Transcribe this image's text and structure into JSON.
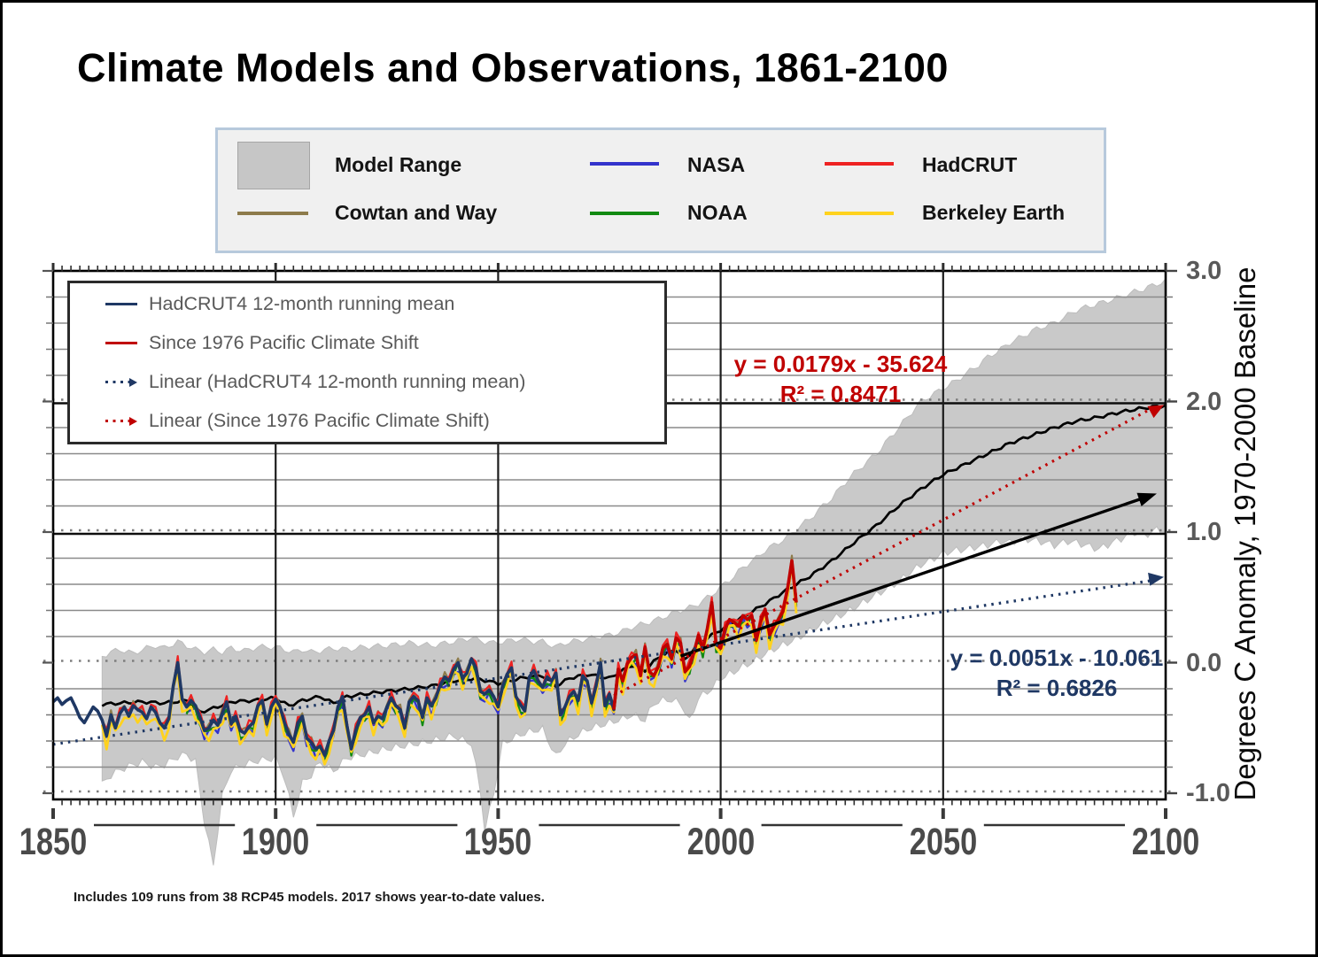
{
  "page": {
    "title": "Climate Models and Observations, 1861-2100",
    "footnote": "Includes 109 runs from 38 RCP45 models. 2017 shows year-to-date values."
  },
  "legend": {
    "items": [
      {
        "label": "Model Range",
        "color": "#c6c6c6",
        "type": "box"
      },
      {
        "label": "NASA",
        "color": "#3333cc",
        "type": "line"
      },
      {
        "label": "HadCRUT",
        "color": "#ee2222",
        "type": "line"
      },
      {
        "label": "Cowtan and Way",
        "color": "#8d7b4b",
        "type": "line"
      },
      {
        "label": "NOAA",
        "color": "#128a12",
        "type": "line"
      },
      {
        "label": "Berkeley Earth",
        "color": "#ffd21e",
        "type": "line"
      }
    ]
  },
  "inner_legend": {
    "items": [
      {
        "label": "HadCRUT4 12-month running mean",
        "color": "#1f3864",
        "style": "solid"
      },
      {
        "label": "Since 1976 Pacific Climate Shift",
        "color": "#c00000",
        "style": "solid"
      },
      {
        "label": "Linear (HadCRUT4 12-month running mean)",
        "color": "#1f3864",
        "style": "dotted-arrow"
      },
      {
        "label": "Linear (Since 1976 Pacific Climate Shift)",
        "color": "#c00000",
        "style": "dotted-arrow"
      }
    ]
  },
  "annotations": {
    "red": {
      "line1": "y = 0.0179x - 35.624",
      "line2": "R² = 0.8471",
      "color": "#c00000"
    },
    "navy": {
      "line1": "y = 0.0051x - 10.061",
      "line2": "R² = 0.6826",
      "color": "#1f3864"
    }
  },
  "x_axis": {
    "ticks": [
      "1850",
      "1900",
      "1950",
      "2000",
      "2050",
      "2100"
    ]
  },
  "y_axis": {
    "ticks": [
      "3.0",
      "2.0",
      "1.0",
      "0.0",
      "-1.0"
    ],
    "title": "Degrees C Anomaly, 1970-2000 Baseline"
  },
  "chart_data": {
    "type": "line",
    "title": "Climate Models and Observations, 1861-2100",
    "xlabel": "",
    "ylabel": "Degrees C Anomaly, 1970-2000 Baseline",
    "x_range": [
      1850,
      2100
    ],
    "y_range": [
      -1.05,
      3.0
    ],
    "grid_step": 0.2,
    "reference_lines": [
      1.0,
      2.0
    ],
    "band": {
      "name": "Model Range",
      "color": "#c9c9c9",
      "points": [
        [
          1861,
          -0.93,
          0.05
        ],
        [
          1863,
          -0.86,
          0.08
        ],
        [
          1865,
          -0.82,
          0.1
        ],
        [
          1868,
          -0.78,
          0.07
        ],
        [
          1870,
          -0.76,
          0.1
        ],
        [
          1873,
          -0.8,
          0.13
        ],
        [
          1875,
          -0.78,
          0.11
        ],
        [
          1878,
          -0.72,
          0.16
        ],
        [
          1880,
          -0.7,
          0.13
        ],
        [
          1882,
          -0.76,
          0.1
        ],
        [
          1884,
          -1.22,
          0.08
        ],
        [
          1886,
          -1.55,
          0.1
        ],
        [
          1888,
          -1.02,
          0.08
        ],
        [
          1890,
          -0.82,
          0.11
        ],
        [
          1893,
          -0.78,
          0.09
        ],
        [
          1896,
          -0.75,
          0.12
        ],
        [
          1900,
          -0.73,
          0.12
        ],
        [
          1902,
          -0.88,
          0.1
        ],
        [
          1904,
          -1.18,
          0.08
        ],
        [
          1906,
          -0.92,
          0.1
        ],
        [
          1908,
          -0.86,
          0.08
        ],
        [
          1910,
          -0.76,
          0.09
        ],
        [
          1913,
          -0.83,
          0.11
        ],
        [
          1916,
          -0.73,
          0.1
        ],
        [
          1920,
          -0.7,
          0.12
        ],
        [
          1925,
          -0.66,
          0.13
        ],
        [
          1930,
          -0.63,
          0.15
        ],
        [
          1935,
          -0.6,
          0.13
        ],
        [
          1940,
          -0.56,
          0.16
        ],
        [
          1944,
          -0.62,
          0.19
        ],
        [
          1946,
          -0.98,
          0.17
        ],
        [
          1947,
          -1.28,
          0.16
        ],
        [
          1949,
          -1.0,
          0.15
        ],
        [
          1951,
          -0.62,
          0.16
        ],
        [
          1955,
          -0.55,
          0.18
        ],
        [
          1958,
          -0.52,
          0.16
        ],
        [
          1960,
          -0.51,
          0.16
        ],
        [
          1963,
          -0.72,
          0.12
        ],
        [
          1965,
          -0.62,
          0.15
        ],
        [
          1968,
          -0.55,
          0.17
        ],
        [
          1970,
          -0.51,
          0.18
        ],
        [
          1973,
          -0.48,
          0.2
        ],
        [
          1975,
          -0.46,
          0.21
        ],
        [
          1978,
          -0.43,
          0.24
        ],
        [
          1980,
          -0.4,
          0.27
        ],
        [
          1983,
          -0.44,
          0.3
        ],
        [
          1985,
          -0.31,
          0.32
        ],
        [
          1988,
          -0.28,
          0.36
        ],
        [
          1991,
          -0.31,
          0.4
        ],
        [
          1993,
          -0.45,
          0.42
        ],
        [
          1995,
          -0.27,
          0.45
        ],
        [
          1998,
          -0.2,
          0.52
        ],
        [
          2000,
          -0.12,
          0.58
        ],
        [
          2003,
          -0.07,
          0.66
        ],
        [
          2005,
          -0.03,
          0.73
        ],
        [
          2008,
          0.02,
          0.8
        ],
        [
          2010,
          0.07,
          0.86
        ],
        [
          2013,
          0.12,
          0.92
        ],
        [
          2015,
          0.15,
          0.96
        ],
        [
          2018,
          0.2,
          1.05
        ],
        [
          2020,
          0.24,
          1.1
        ],
        [
          2023,
          0.3,
          1.2
        ],
        [
          2025,
          0.33,
          1.26
        ],
        [
          2028,
          0.38,
          1.38
        ],
        [
          2030,
          0.42,
          1.45
        ],
        [
          2033,
          0.48,
          1.54
        ],
        [
          2035,
          0.52,
          1.6
        ],
        [
          2038,
          0.58,
          1.72
        ],
        [
          2040,
          0.62,
          1.8
        ],
        [
          2043,
          0.7,
          1.92
        ],
        [
          2045,
          0.75,
          2.0
        ],
        [
          2048,
          0.8,
          2.06
        ],
        [
          2050,
          0.84,
          2.1
        ],
        [
          2053,
          0.86,
          2.16
        ],
        [
          2055,
          0.87,
          2.21
        ],
        [
          2058,
          0.89,
          2.28
        ],
        [
          2060,
          0.9,
          2.34
        ],
        [
          2063,
          0.93,
          2.4
        ],
        [
          2065,
          0.92,
          2.45
        ],
        [
          2068,
          0.95,
          2.5
        ],
        [
          2070,
          0.94,
          2.54
        ],
        [
          2073,
          0.92,
          2.58
        ],
        [
          2075,
          0.9,
          2.6
        ],
        [
          2078,
          0.93,
          2.66
        ],
        [
          2080,
          0.92,
          2.7
        ],
        [
          2083,
          0.89,
          2.73
        ],
        [
          2085,
          0.87,
          2.75
        ],
        [
          2088,
          0.92,
          2.78
        ],
        [
          2090,
          0.95,
          2.8
        ],
        [
          2093,
          1.0,
          2.84
        ],
        [
          2095,
          0.97,
          2.86
        ],
        [
          2098,
          1.02,
          2.9
        ],
        [
          2100,
          1.0,
          2.92
        ]
      ]
    },
    "model_mean": {
      "name": "Model mean",
      "color": "#000000",
      "points": [
        [
          1861,
          -0.32
        ],
        [
          1865,
          -0.31
        ],
        [
          1870,
          -0.3
        ],
        [
          1875,
          -0.31
        ],
        [
          1880,
          -0.29
        ],
        [
          1883,
          -0.38
        ],
        [
          1886,
          -0.35
        ],
        [
          1890,
          -0.3
        ],
        [
          1895,
          -0.29
        ],
        [
          1900,
          -0.27
        ],
        [
          1903,
          -0.33
        ],
        [
          1906,
          -0.29
        ],
        [
          1910,
          -0.26
        ],
        [
          1913,
          -0.31
        ],
        [
          1916,
          -0.26
        ],
        [
          1920,
          -0.24
        ],
        [
          1925,
          -0.22
        ],
        [
          1930,
          -0.2
        ],
        [
          1935,
          -0.18
        ],
        [
          1940,
          -0.14
        ],
        [
          1945,
          -0.12
        ],
        [
          1950,
          -0.16
        ],
        [
          1955,
          -0.12
        ],
        [
          1960,
          -0.1
        ],
        [
          1963,
          -0.18
        ],
        [
          1966,
          -0.12
        ],
        [
          1970,
          -0.09
        ],
        [
          1975,
          -0.12
        ],
        [
          1980,
          -0.02
        ],
        [
          1983,
          -0.06
        ],
        [
          1986,
          0.04
        ],
        [
          1990,
          0.1
        ],
        [
          1992,
          0.02
        ],
        [
          1995,
          0.15
        ],
        [
          2000,
          0.25
        ],
        [
          2005,
          0.35
        ],
        [
          2010,
          0.45
        ],
        [
          2015,
          0.56
        ],
        [
          2020,
          0.66
        ],
        [
          2025,
          0.78
        ],
        [
          2030,
          0.92
        ],
        [
          2035,
          1.05
        ],
        [
          2040,
          1.2
        ],
        [
          2045,
          1.33
        ],
        [
          2050,
          1.44
        ],
        [
          2055,
          1.52
        ],
        [
          2060,
          1.6
        ],
        [
          2065,
          1.68
        ],
        [
          2070,
          1.74
        ],
        [
          2075,
          1.8
        ],
        [
          2080,
          1.85
        ],
        [
          2085,
          1.88
        ],
        [
          2090,
          1.92
        ],
        [
          2095,
          1.95
        ],
        [
          2100,
          1.97
        ]
      ]
    },
    "obs_base": {
      "start_year": 1850,
      "end_year": 2017,
      "values": [
        -0.3,
        -0.27,
        -0.32,
        -0.29,
        -0.27,
        -0.34,
        -0.42,
        -0.46,
        -0.4,
        -0.34,
        -0.37,
        -0.44,
        -0.56,
        -0.4,
        -0.5,
        -0.39,
        -0.34,
        -0.41,
        -0.33,
        -0.36,
        -0.38,
        -0.43,
        -0.34,
        -0.38,
        -0.46,
        -0.5,
        -0.43,
        -0.18,
        0.0,
        -0.28,
        -0.34,
        -0.29,
        -0.33,
        -0.42,
        -0.52,
        -0.5,
        -0.44,
        -0.48,
        -0.39,
        -0.3,
        -0.47,
        -0.41,
        -0.52,
        -0.54,
        -0.49,
        -0.46,
        -0.33,
        -0.29,
        -0.47,
        -0.34,
        -0.28,
        -0.34,
        -0.46,
        -0.55,
        -0.61,
        -0.46,
        -0.41,
        -0.58,
        -0.61,
        -0.66,
        -0.64,
        -0.71,
        -0.6,
        -0.52,
        -0.34,
        -0.26,
        -0.48,
        -0.66,
        -0.52,
        -0.42,
        -0.4,
        -0.34,
        -0.46,
        -0.41,
        -0.43,
        -0.34,
        -0.27,
        -0.33,
        -0.36,
        -0.5,
        -0.3,
        -0.26,
        -0.29,
        -0.42,
        -0.27,
        -0.33,
        -0.27,
        -0.17,
        -0.11,
        -0.14,
        -0.05,
        0.0,
        -0.12,
        -0.08,
        0.03,
        -0.04,
        -0.22,
        -0.24,
        -0.21,
        -0.26,
        -0.34,
        -0.18,
        -0.09,
        -0.04,
        -0.26,
        -0.32,
        -0.37,
        -0.11,
        -0.06,
        -0.14,
        -0.19,
        -0.11,
        -0.14,
        -0.08,
        -0.4,
        -0.34,
        -0.26,
        -0.22,
        -0.29,
        -0.1,
        -0.14,
        -0.31,
        -0.18,
        0.0,
        -0.33,
        -0.24,
        -0.36,
        -0.05,
        -0.14,
        -0.01,
        0.04,
        0.06,
        -0.1,
        0.12,
        -0.07,
        -0.1,
        -0.03,
        0.11,
        0.14,
        0.03,
        0.19,
        0.15,
        -0.07,
        -0.03,
        0.08,
        0.21,
        0.1,
        0.26,
        0.46,
        0.14,
        0.11,
        0.26,
        0.33,
        0.31,
        0.28,
        0.36,
        0.33,
        0.36,
        0.17,
        0.31,
        0.41,
        0.21,
        0.28,
        0.33,
        0.39,
        0.56,
        0.78,
        0.46
      ]
    },
    "obs_series": [
      {
        "name": "Cowtan and Way",
        "color": "#8d7b4b",
        "start": 1861,
        "offset": 0.015,
        "amp": 0.025,
        "freq": 2.5,
        "phase": 0.5,
        "width": 2.2
      },
      {
        "name": "NASA",
        "color": "#3333cc",
        "start": 1880,
        "offset": -0.045,
        "amp": 0.03,
        "freq": 2.2,
        "phase": 1.3,
        "width": 2.4
      },
      {
        "name": "NOAA",
        "color": "#128a12",
        "start": 1880,
        "offset": -0.03,
        "amp": 0.03,
        "freq": 2.0,
        "phase": 2.7,
        "width": 2.4
      },
      {
        "name": "Berkeley Earth",
        "color": "#ffd21e",
        "start": 1861,
        "offset": -0.06,
        "amp": 0.045,
        "freq": 1.9,
        "phase": 4.1,
        "width": 2.8
      },
      {
        "name": "HadCRUT",
        "color": "#ee2222",
        "start": 1861,
        "offset": 0.02,
        "amp": 0.03,
        "freq": 2.35,
        "phase": 5.3,
        "width": 2.2
      }
    ],
    "hadcrut4_line": {
      "name": "HadCRUT4 12-month running mean",
      "color": "#1f3864",
      "end": 1977,
      "width": 3.6
    },
    "since1976_line": {
      "name": "Since 1976 Pacific Climate Shift",
      "color": "#c00000",
      "start": 1976,
      "width": 3.6
    },
    "trendlines": [
      {
        "name": "Linear (HadCRUT4 12-month running mean)",
        "color": "#1f3864",
        "slope": 0.0051,
        "intercept": -10.061,
        "r2": 0.6826,
        "x1": 1850,
        "x2": 2100
      },
      {
        "name": "Linear (Since 1976 Pacific Climate Shift)",
        "color": "#c00000",
        "slope": 0.0179,
        "intercept": -35.624,
        "r2": 0.8471,
        "x1": 1976,
        "x2": 2100
      }
    ],
    "projection_arrow": {
      "color": "#000000",
      "x1": 1991,
      "y1": 0.05,
      "x2": 2098,
      "y2": 1.295
    }
  }
}
